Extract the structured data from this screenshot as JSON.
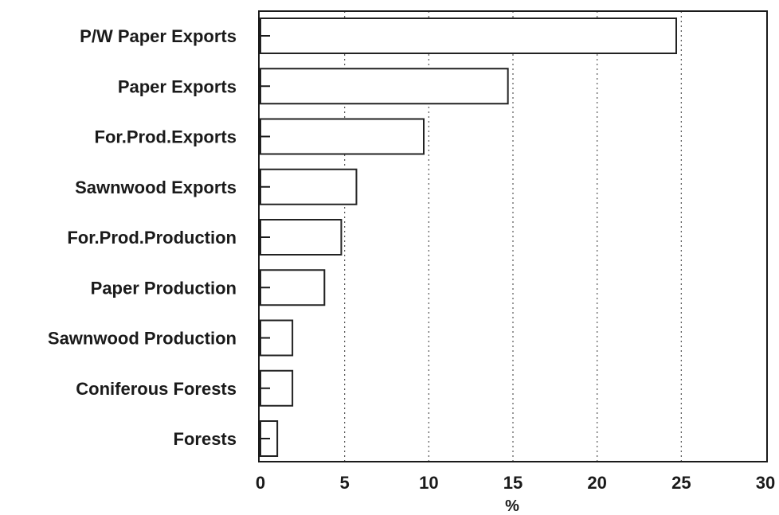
{
  "chart_data": {
    "type": "bar",
    "orientation": "horizontal",
    "categories": [
      "P/W Paper Exports",
      "Paper Exports",
      "For.Prod.Exports",
      "Sawnwood Exports",
      "For.Prod.Production",
      "Paper Production",
      "Sawnwood Production",
      "Coniferous Forests",
      "Forests"
    ],
    "values": [
      24.7,
      14.7,
      9.7,
      5.7,
      4.8,
      3.8,
      1.9,
      1.9,
      1.0
    ],
    "xlabel": "%",
    "ylabel": "",
    "title": "",
    "xlim": [
      0,
      30
    ],
    "xticks": [
      "0",
      "5",
      "10",
      "15",
      "20",
      "25",
      "30"
    ],
    "grid": "vertical dotted",
    "colors": {
      "bar_fill": "#ffffff",
      "bar_stroke": "#222222",
      "grid": "#555555"
    }
  }
}
